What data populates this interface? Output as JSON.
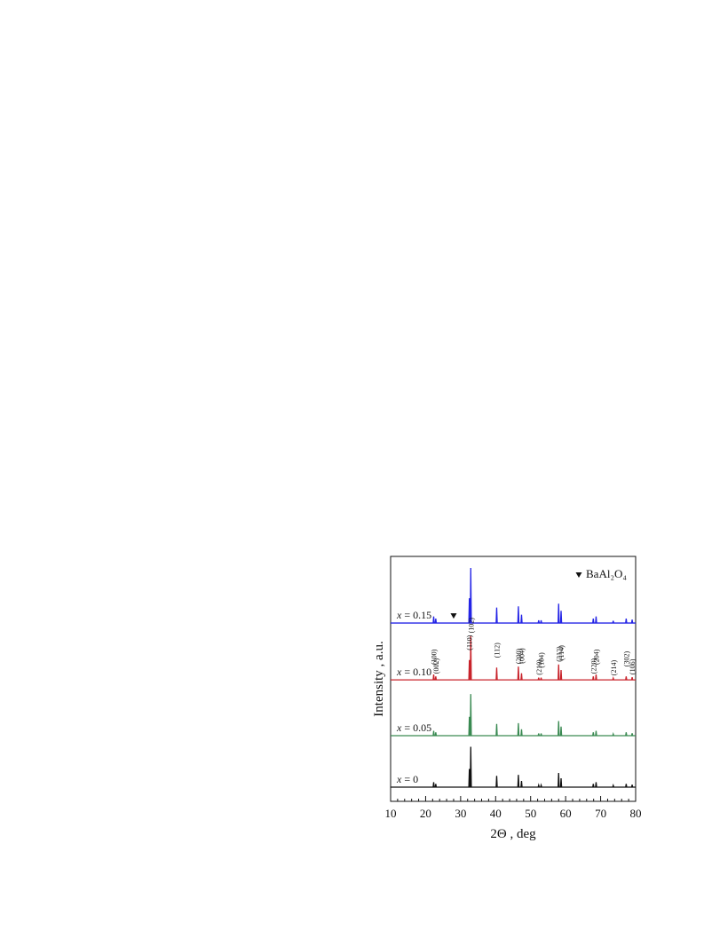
{
  "chart_data": {
    "type": "line",
    "xlabel": "2Θ , deg",
    "ylabel": "Intensity , a.u.",
    "xlim": [
      10,
      80
    ],
    "xticks": [
      10,
      20,
      30,
      40,
      50,
      60,
      70,
      80
    ],
    "xminorticks": [
      12,
      14,
      16,
      18,
      22,
      24,
      26,
      28,
      32,
      34,
      36,
      38,
      42,
      44,
      46,
      48,
      52,
      54,
      56,
      58,
      62,
      64,
      66,
      68,
      72,
      74,
      76,
      78
    ],
    "ylim": [
      0,
      100
    ],
    "x": [
      10,
      22.15,
      22.3,
      22.45,
      22.75,
      22.9,
      23.05,
      32.35,
      32.5,
      32.65,
      32.75,
      32.9,
      33.05,
      40.15,
      40.3,
      40.45,
      46.35,
      46.5,
      46.65,
      47.25,
      47.4,
      47.55,
      52.15,
      52.3,
      52.45,
      52.85,
      53,
      53.15,
      57.85,
      58,
      58.15,
      58.55,
      58.7,
      58.85,
      67.75,
      67.9,
      68.05,
      68.55,
      68.7,
      68.85,
      73.45,
      73.6,
      73.75,
      77.15,
      77.3,
      77.45,
      78.85,
      79,
      79.15,
      80
    ],
    "series": [
      {
        "name": "x = 0",
        "color": "#111111",
        "values": [
          5.8,
          5.8,
          7.8,
          5.8,
          5.8,
          7.1,
          5.8,
          5.8,
          13.2,
          5.8,
          5.8,
          22.3,
          5.8,
          5.8,
          10.4,
          5.8,
          5.8,
          10.8,
          5.8,
          5.8,
          8.3,
          5.8,
          5.8,
          6.6,
          5.8,
          5.8,
          6.6,
          5.8,
          5.8,
          11.6,
          5.8,
          5.8,
          9.4,
          5.8,
          5.8,
          7.1,
          5.8,
          5.8,
          7.8,
          5.8,
          5.8,
          6.5,
          5.8,
          5.8,
          7.1,
          5.8,
          5.8,
          6.8,
          5.8,
          5.8
        ]
      },
      {
        "name": "x = 0.05",
        "color": "#3a8a52",
        "values": [
          26.8,
          26.8,
          28.8,
          26.8,
          26.8,
          28.2,
          26.8,
          26.8,
          34.5,
          26.8,
          26.8,
          43.8,
          26.8,
          26.8,
          31.6,
          26.8,
          26.8,
          31.9,
          26.8,
          26.8,
          29.4,
          26.8,
          26.8,
          27.7,
          26.8,
          26.8,
          27.7,
          26.8,
          26.8,
          32.8,
          26.8,
          26.8,
          30.5,
          26.8,
          26.8,
          28.2,
          26.8,
          26.8,
          28.8,
          26.8,
          26.8,
          27.5,
          26.8,
          26.8,
          28.2,
          26.8,
          26.8,
          27.8,
          26.8,
          26.8
        ]
      },
      {
        "name": "x = 0.10",
        "color": "#c8232b",
        "values": [
          49.6,
          49.6,
          51.8,
          49.6,
          49.6,
          51.0,
          49.6,
          49.6,
          57.7,
          49.6,
          49.6,
          67.6,
          49.6,
          49.6,
          54.6,
          49.6,
          49.6,
          55.0,
          49.6,
          49.6,
          52.3,
          49.6,
          49.6,
          50.5,
          49.6,
          49.6,
          50.5,
          49.6,
          49.6,
          55.9,
          49.6,
          49.6,
          53.6,
          49.6,
          49.6,
          51.0,
          49.6,
          49.6,
          51.8,
          49.6,
          49.6,
          50.3,
          49.6,
          49.6,
          51.0,
          49.6,
          49.6,
          50.7,
          49.6,
          49.6
        ]
      },
      {
        "name": "x = 0.15",
        "color": "#2424e6",
        "values": [
          72.8,
          72.8,
          75.5,
          72.8,
          72.8,
          74.6,
          72.8,
          72.8,
          82.9,
          72.8,
          72.8,
          95.3,
          72.8,
          72.8,
          79.1,
          72.8,
          72.8,
          79.6,
          72.8,
          72.8,
          76.2,
          72.8,
          72.8,
          73.9,
          72.8,
          72.8,
          73.9,
          72.8,
          72.8,
          80.7,
          72.8,
          72.8,
          77.8,
          72.8,
          72.8,
          74.6,
          72.8,
          72.8,
          75.5,
          72.8,
          72.8,
          73.7,
          72.8,
          72.8,
          74.6,
          72.8,
          72.8,
          74.2,
          72.8,
          72.8
        ]
      }
    ],
    "annotations": [
      {
        "text": "(100)",
        "x": 22.3
      },
      {
        "text": "(002)",
        "x": 22.9
      },
      {
        "text": "(110)",
        "x": 32.5
      },
      {
        "text": "(102)",
        "x": 32.9
      },
      {
        "text": "(112)",
        "x": 40.3
      },
      {
        "text": "(200)",
        "x": 46.5
      },
      {
        "text": "(004)",
        "x": 47.4
      },
      {
        "text": "(210)",
        "x": 52.3
      },
      {
        "text": "(104)",
        "x": 53
      },
      {
        "text": "(212)",
        "x": 58
      },
      {
        "text": "(114)",
        "x": 58.7
      },
      {
        "text": "(220)",
        "x": 67.9
      },
      {
        "text": "(204)",
        "x": 68.7
      },
      {
        "text": "(214)",
        "x": 73.6
      },
      {
        "text": "(302)",
        "x": 77.3
      },
      {
        "text": "(106)",
        "x": 79
      }
    ],
    "phase_marker": {
      "label": "BaAl₂O₄",
      "x": 28
    },
    "legend": "upper right"
  }
}
